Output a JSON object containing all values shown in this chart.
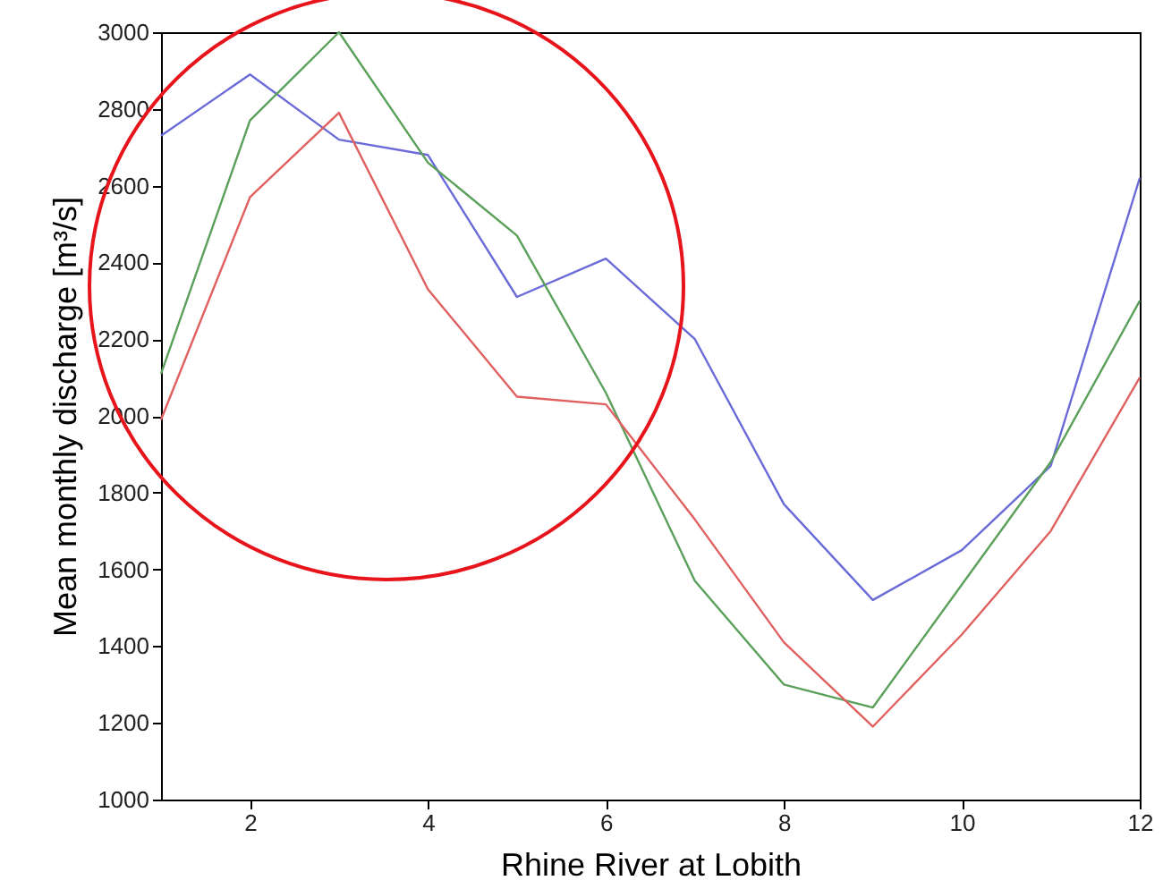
{
  "chart_data": {
    "type": "line",
    "xlabel": "Rhine River at Lobith",
    "ylabel": "Mean monthly discharge [m³/s]",
    "x": [
      1,
      2,
      3,
      4,
      5,
      6,
      7,
      8,
      9,
      10,
      11,
      12
    ],
    "series": [
      {
        "color": "#6a6ad8",
        "values": [
          2730,
          2890,
          2720,
          2680,
          2310,
          2410,
          2200,
          1770,
          1520,
          1650,
          1870,
          2620
        ]
      },
      {
        "color": "#5aa05a",
        "values": [
          2110,
          2770,
          3000,
          2660,
          2470,
          2060,
          1570,
          1300,
          1240,
          1560,
          1880,
          2300
        ]
      },
      {
        "color": "#e06060",
        "values": [
          1990,
          2570,
          2790,
          2330,
          2050,
          2030,
          1730,
          1410,
          1190,
          1430,
          1700,
          2100
        ]
      }
    ],
    "xlim": [
      1,
      12
    ],
    "xticks": [
      2,
      4,
      6,
      8,
      10,
      12
    ],
    "ylim": [
      1000,
      3000
    ],
    "yticks": [
      1000,
      1200,
      1400,
      1600,
      1800,
      2000,
      2200,
      2400,
      2600,
      2800,
      3000
    ],
    "grid": false,
    "marker": "none",
    "line_style": "solid"
  }
}
